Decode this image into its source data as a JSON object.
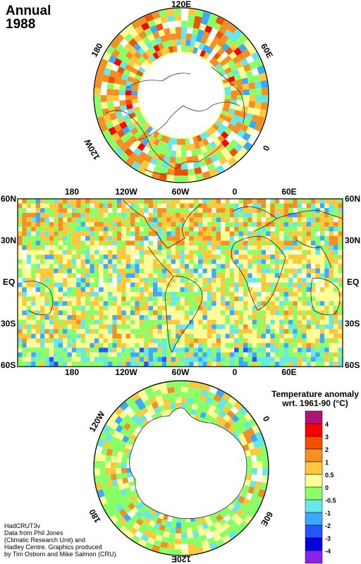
{
  "title": {
    "line1": "Annual",
    "line2": "1988"
  },
  "north_map": {
    "labels": [
      "120E",
      "60E",
      "0",
      "120W",
      "180"
    ]
  },
  "world_map": {
    "top_lon_labels": [
      "180",
      "120W",
      "60W",
      "0",
      "60E"
    ],
    "bottom_lon_labels": [
      "180",
      "120W",
      "60W",
      "0",
      "60E"
    ],
    "lat_labels": [
      "60N",
      "30N",
      "EQ",
      "30S",
      "60S"
    ]
  },
  "south_map": {
    "labels": [
      "120W",
      "0",
      "180",
      "60E",
      "120E"
    ]
  },
  "legend": {
    "title_line1": "Temperature anomaly",
    "title_line2": "wrt. 1961-90  (°C)",
    "tick_labels": [
      "4",
      "3",
      "2",
      "1",
      "0.5",
      "0",
      "-0.5",
      "-1",
      "-2",
      "-3",
      "-4"
    ],
    "colors": [
      "#b0147a",
      "#ff0000",
      "#f05000",
      "#f58f24",
      "#ffc73e",
      "#ffff99",
      "#8aff68",
      "#66e8e8",
      "#3aaaff",
      "#2255ff",
      "#0000dd",
      "#8822ee"
    ]
  },
  "credits": [
    "HadCRUT3v",
    "Data from Phil Jones",
    "(Climatic Research Unit) and",
    "Hadley Centre.  Graphics produced",
    "by Tim Osborn and Mike Salmon (CRU)."
  ],
  "palette": {
    "orange": "#f58f24",
    "dark_orange": "#f05000",
    "red": "#ff0000",
    "yellow": "#ffc73e",
    "pale_yellow": "#ffff99",
    "green": "#8aff68",
    "cyan": "#66e8e8",
    "light_blue": "#3aaaff",
    "blue": "#2255ff",
    "dark_blue": "#0000dd"
  }
}
